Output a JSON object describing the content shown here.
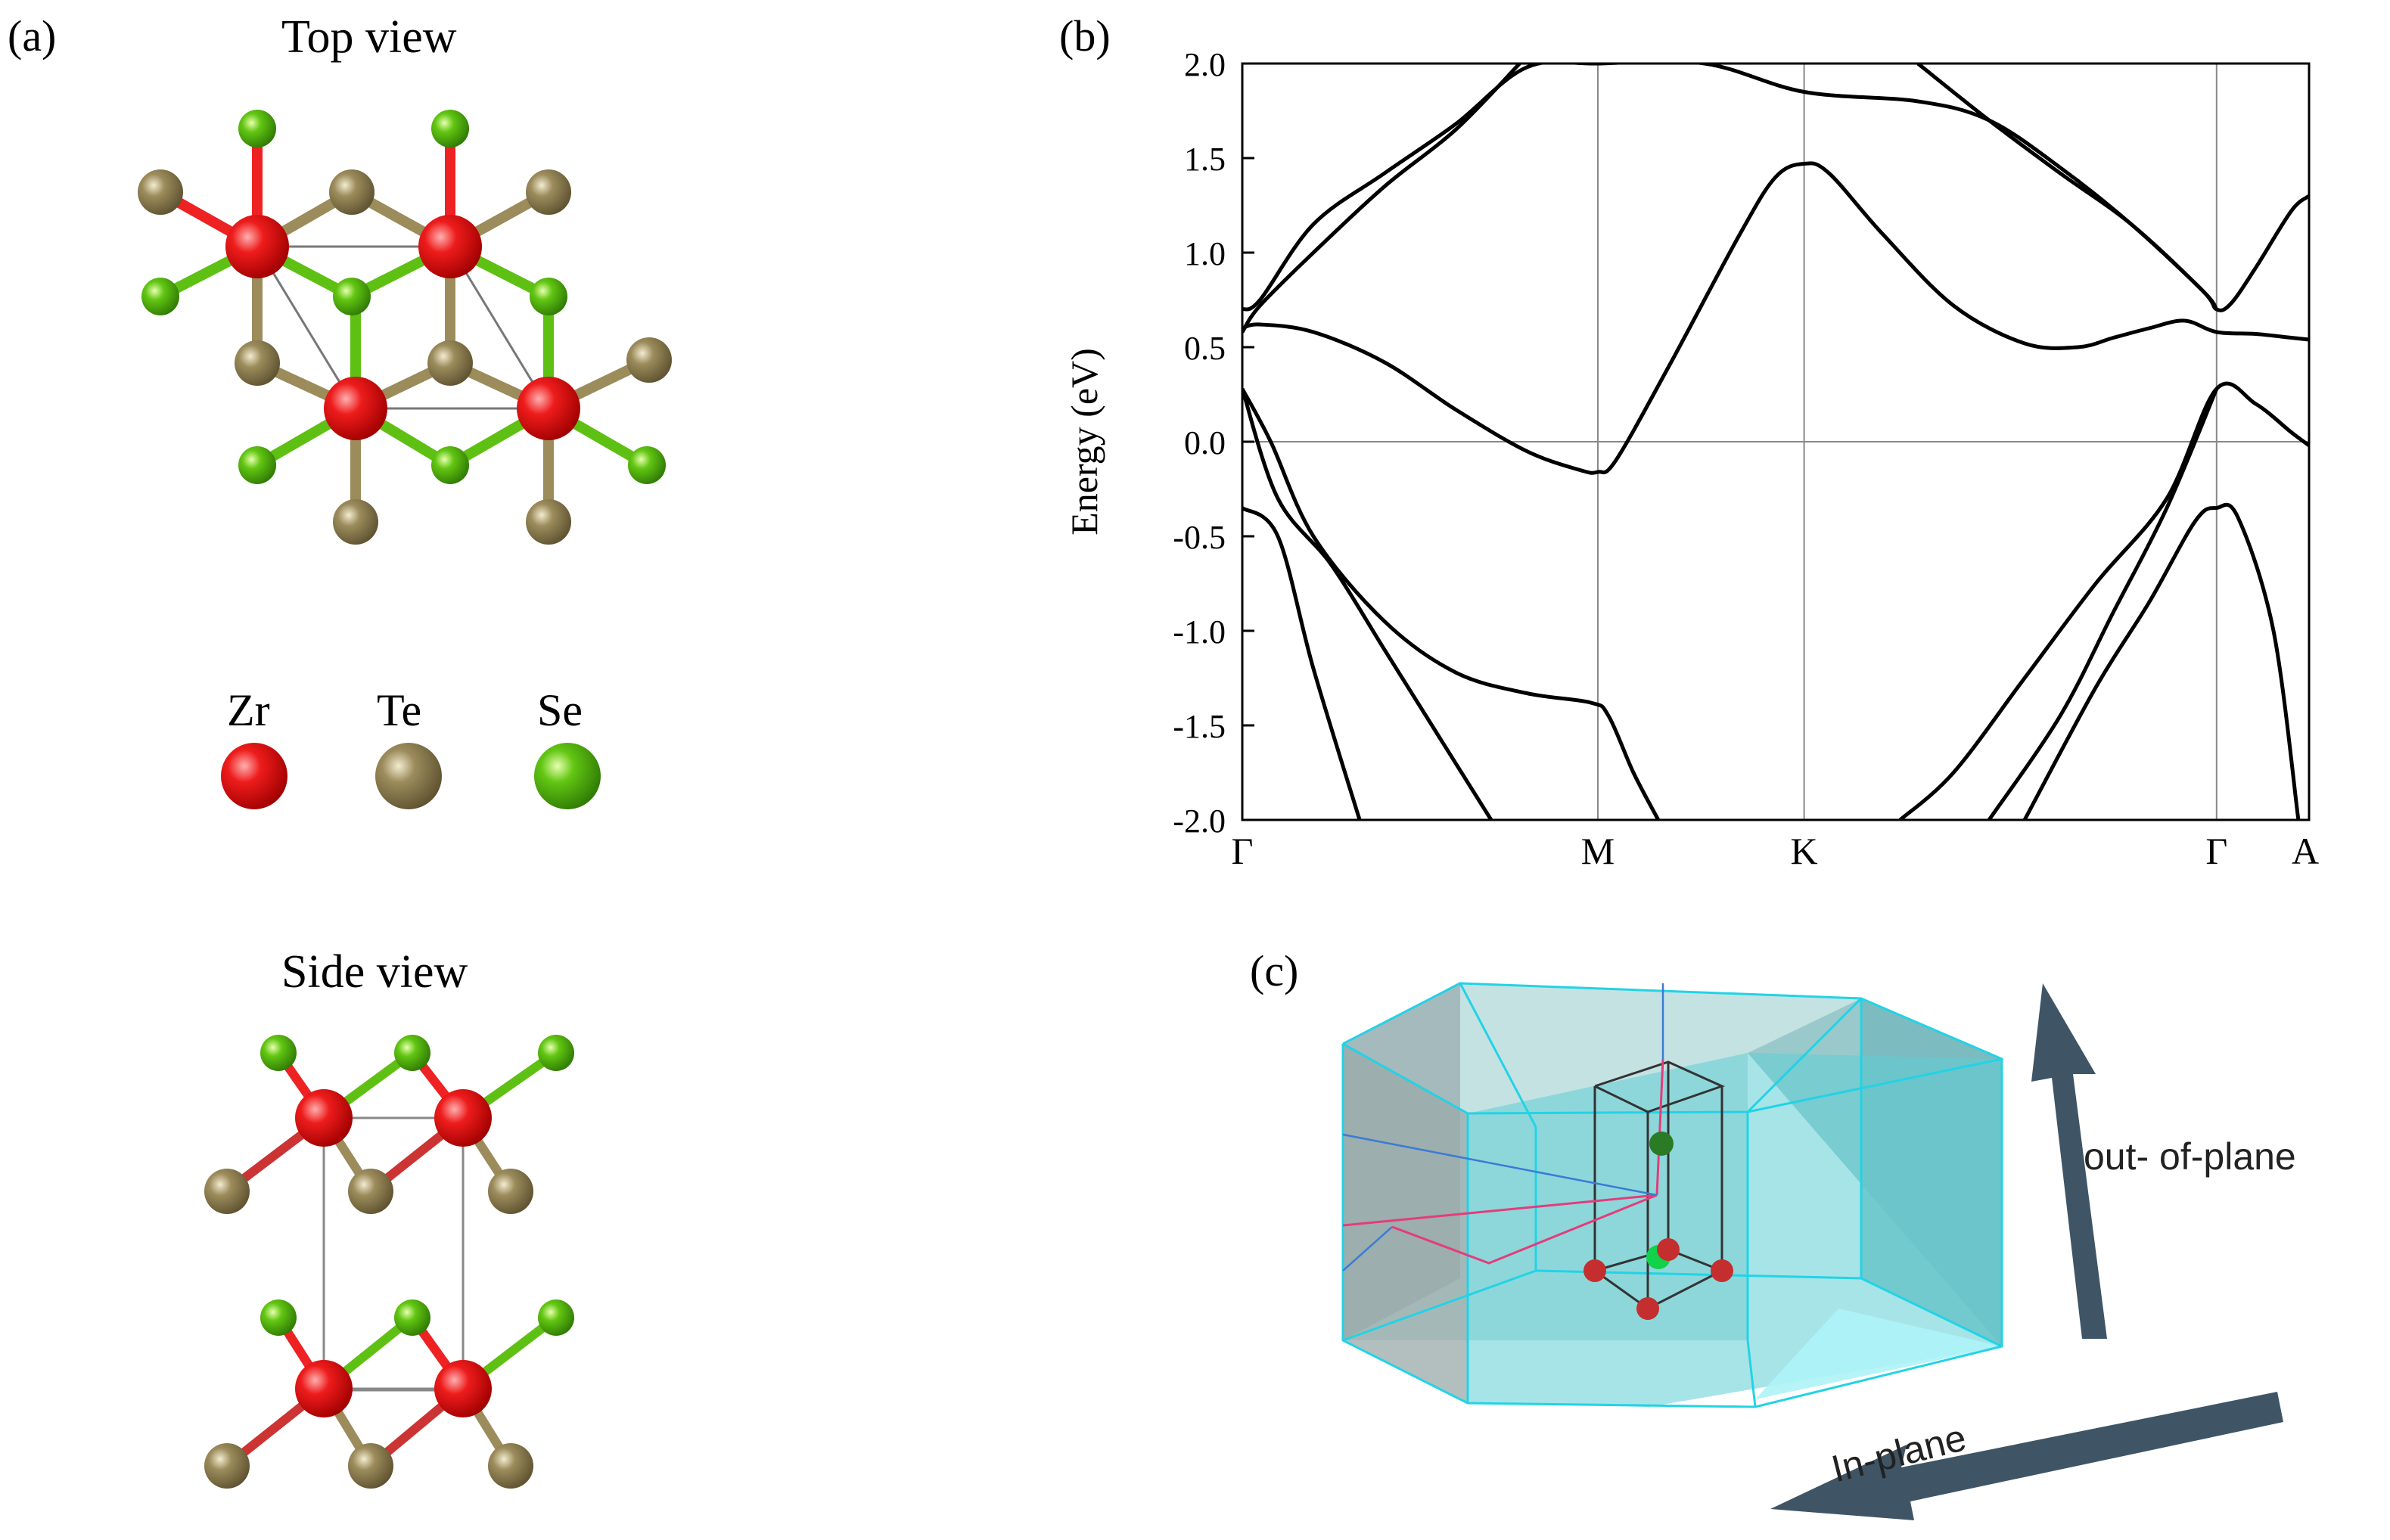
{
  "panel_a": {
    "label": "(a)",
    "top_view_title": "Top view",
    "side_view_title": "Side view",
    "legend": [
      {
        "symbol": "Zr",
        "color": "#e01010"
      },
      {
        "symbol": "Te",
        "color": "#8c7a4a"
      },
      {
        "symbol": "Se",
        "color": "#5fc014"
      }
    ]
  },
  "panel_b": {
    "label": "(b)"
  },
  "panel_c": {
    "label": "(c)",
    "out_of_plane_label": "out- of-plane",
    "in_plane_label": "In-plane",
    "bz_color": "#33d6e6",
    "arrow_color": "#3f5566"
  },
  "chart_data": {
    "type": "line",
    "title": "",
    "xlabel": "",
    "ylabel": "Energy (eV)",
    "ylim": [
      -2.0,
      2.0
    ],
    "yticks": [
      "2.0",
      "1.5",
      "1.0",
      "0.5",
      "0.0",
      "-0.5",
      "-1.0",
      "-1.5",
      "-2.0"
    ],
    "ytick_values": [
      2.0,
      1.5,
      1.0,
      0.5,
      0.0,
      -0.5,
      -1.0,
      -1.5,
      -2.0
    ],
    "xlim": [
      0,
      3.0
    ],
    "high_symmetry_points": [
      {
        "label": "Γ",
        "x": 0.0
      },
      {
        "label": "M",
        "x": 1.0
      },
      {
        "label": "K",
        "x": 1.58
      },
      {
        "label": "Γ",
        "x": 2.74
      },
      {
        "label": "A",
        "x": 3.0
      }
    ],
    "fermi_level": 0.0,
    "series": [
      {
        "name": "band-1",
        "x": [
          0.0,
          0.1,
          0.2,
          0.33
        ],
        "y": [
          -0.35,
          -0.5,
          -1.2,
          -2.0
        ]
      },
      {
        "name": "band-2",
        "x": [
          0.0,
          0.1,
          0.25,
          0.4,
          0.55,
          0.7
        ],
        "y": [
          0.28,
          -0.3,
          -0.65,
          -1.1,
          -1.55,
          -2.0
        ]
      },
      {
        "name": "band-3",
        "x": [
          0.0,
          0.08,
          0.2,
          0.4,
          0.6,
          0.8,
          0.98,
          1.03,
          1.1,
          1.17
        ],
        "y": [
          0.28,
          0.0,
          -0.5,
          -0.95,
          -1.22,
          -1.33,
          -1.38,
          -1.45,
          -1.75,
          -2.0
        ]
      },
      {
        "name": "band-4",
        "x": [
          0.0,
          0.05,
          0.2,
          0.4,
          0.6,
          0.8,
          0.95,
          1.0,
          1.05,
          1.2,
          1.4,
          1.5,
          1.58,
          1.65,
          1.8,
          2.0,
          2.2,
          2.35,
          2.45,
          2.55,
          2.65,
          2.74,
          2.85,
          2.95,
          3.0
        ],
        "y": [
          0.6,
          0.62,
          0.58,
          0.42,
          0.17,
          -0.05,
          -0.15,
          -0.16,
          -0.1,
          0.4,
          1.1,
          1.4,
          1.47,
          1.42,
          1.1,
          0.72,
          0.52,
          0.5,
          0.55,
          0.6,
          0.64,
          0.58,
          0.57,
          0.55,
          0.54
        ]
      },
      {
        "name": "band-5",
        "x": [
          0.0,
          0.05,
          0.2,
          0.4,
          0.6,
          0.8,
          1.0,
          1.3,
          1.58,
          1.9,
          2.1,
          2.3,
          2.5,
          2.7,
          2.74,
          2.78,
          2.85,
          2.95,
          3.0
        ],
        "y": [
          0.7,
          0.75,
          1.15,
          1.42,
          1.68,
          1.98,
          2.0,
          2.0,
          1.85,
          1.8,
          1.7,
          1.45,
          1.15,
          0.8,
          0.7,
          0.73,
          0.92,
          1.22,
          1.3
        ]
      },
      {
        "name": "band-6",
        "x": [
          0.0,
          0.05,
          0.2,
          0.4,
          0.6,
          0.78
        ],
        "y": [
          0.58,
          0.72,
          1.0,
          1.35,
          1.65,
          2.0
        ]
      },
      {
        "name": "band-7",
        "x": [
          1.9,
          2.1,
          2.3,
          2.5,
          2.7,
          2.74
        ],
        "y": [
          2.0,
          1.7,
          1.42,
          1.15,
          0.8,
          0.7
        ]
      },
      {
        "name": "band-8",
        "x": [
          1.85,
          2.0,
          2.2,
          2.4,
          2.6,
          2.74,
          2.85,
          2.95,
          3.0
        ],
        "y": [
          -2.0,
          -1.75,
          -1.25,
          -0.75,
          -0.3,
          0.28,
          0.2,
          0.05,
          -0.02
        ]
      },
      {
        "name": "band-9",
        "x": [
          2.1,
          2.3,
          2.45,
          2.6,
          2.74
        ],
        "y": [
          -2.0,
          -1.45,
          -0.9,
          -0.35,
          0.28
        ]
      },
      {
        "name": "band-10",
        "x": [
          2.2,
          2.4,
          2.55,
          2.68,
          2.74,
          2.8,
          2.9,
          2.97
        ],
        "y": [
          -2.0,
          -1.3,
          -0.85,
          -0.42,
          -0.35,
          -0.4,
          -1.0,
          -2.0
        ]
      }
    ]
  }
}
